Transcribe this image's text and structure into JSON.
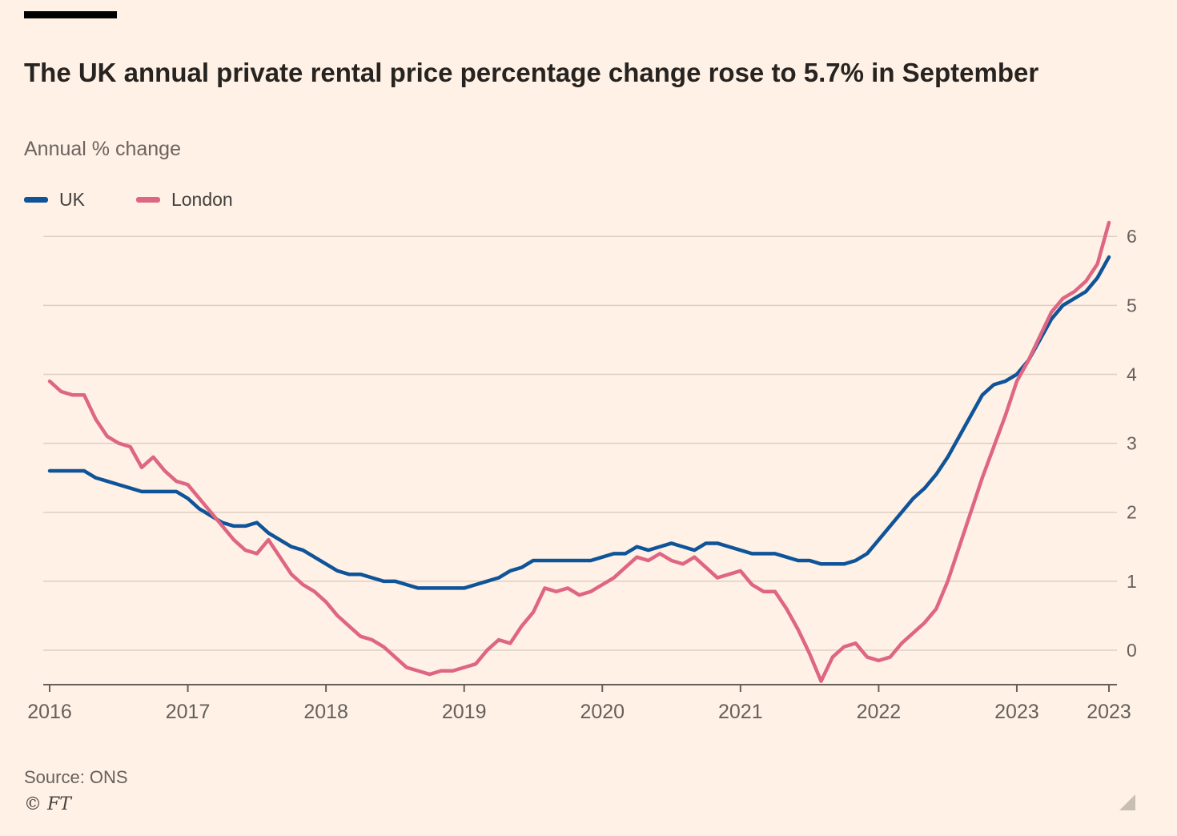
{
  "header": {
    "title": "The UK annual private rental price percentage change rose to 5.7% in September",
    "subtitle": "Annual % change"
  },
  "footer": {
    "source": "Source: ONS",
    "ft": "© FT"
  },
  "colors": {
    "background": "#FFF1E5",
    "title": "#262320",
    "subtitle": "#6b6460",
    "grid": "#ddd0c2",
    "axis": "#66605C",
    "tick_label": "#66605C",
    "uk_line": "#0F5499",
    "london_line": "#DE6683"
  },
  "chart_data": {
    "type": "line",
    "title": "The UK annual private rental price percentage change rose to 5.7% in September",
    "ylabel": "Annual % change",
    "xlabel": "",
    "grid": true,
    "legend_position": "top-left",
    "x_unit": "month",
    "x_range": [
      "2016-01",
      "2023-09"
    ],
    "ylim": [
      -0.5,
      6.2
    ],
    "y_ticks": [
      0,
      1,
      2,
      3,
      4,
      5,
      6
    ],
    "x_ticks": [
      {
        "label": "2016",
        "m": 0
      },
      {
        "label": "2017",
        "m": 12
      },
      {
        "label": "2018",
        "m": 24
      },
      {
        "label": "2019",
        "m": 36
      },
      {
        "label": "2020",
        "m": 48
      },
      {
        "label": "2021",
        "m": 60
      },
      {
        "label": "2022",
        "m": 72
      },
      {
        "label": "2023",
        "m": 84
      },
      {
        "label": "2023",
        "m": 92
      }
    ],
    "series": [
      {
        "name": "UK",
        "color": "#0F5499",
        "values": [
          2.6,
          2.6,
          2.6,
          2.6,
          2.5,
          2.45,
          2.4,
          2.35,
          2.3,
          2.3,
          2.3,
          2.3,
          2.2,
          2.05,
          1.95,
          1.85,
          1.8,
          1.8,
          1.85,
          1.7,
          1.6,
          1.5,
          1.45,
          1.35,
          1.25,
          1.15,
          1.1,
          1.1,
          1.05,
          1.0,
          1.0,
          0.95,
          0.9,
          0.9,
          0.9,
          0.9,
          0.9,
          0.95,
          1.0,
          1.05,
          1.15,
          1.2,
          1.3,
          1.3,
          1.3,
          1.3,
          1.3,
          1.3,
          1.35,
          1.4,
          1.4,
          1.5,
          1.45,
          1.5,
          1.55,
          1.5,
          1.45,
          1.55,
          1.55,
          1.5,
          1.45,
          1.4,
          1.4,
          1.4,
          1.35,
          1.3,
          1.3,
          1.25,
          1.25,
          1.25,
          1.3,
          1.4,
          1.6,
          1.8,
          2.0,
          2.2,
          2.35,
          2.55,
          2.8,
          3.1,
          3.4,
          3.7,
          3.85,
          3.9,
          4.0,
          4.2,
          4.5,
          4.8,
          5.0,
          5.1,
          5.2,
          5.4,
          5.7
        ]
      },
      {
        "name": "London",
        "color": "#DE6683",
        "values": [
          3.9,
          3.75,
          3.7,
          3.7,
          3.35,
          3.1,
          3.0,
          2.95,
          2.65,
          2.8,
          2.6,
          2.45,
          2.4,
          2.2,
          2.0,
          1.8,
          1.6,
          1.45,
          1.4,
          1.6,
          1.35,
          1.1,
          0.95,
          0.85,
          0.7,
          0.5,
          0.35,
          0.2,
          0.15,
          0.05,
          -0.1,
          -0.25,
          -0.3,
          -0.35,
          -0.3,
          -0.3,
          -0.25,
          -0.2,
          0.0,
          0.15,
          0.1,
          0.35,
          0.55,
          0.9,
          0.85,
          0.9,
          0.8,
          0.85,
          0.95,
          1.05,
          1.2,
          1.35,
          1.3,
          1.4,
          1.3,
          1.25,
          1.35,
          1.2,
          1.05,
          1.1,
          1.15,
          0.95,
          0.85,
          0.85,
          0.6,
          0.3,
          -0.05,
          -0.45,
          -0.1,
          0.05,
          0.1,
          -0.1,
          -0.15,
          -0.1,
          0.1,
          0.25,
          0.4,
          0.6,
          1.0,
          1.5,
          2.0,
          2.5,
          2.95,
          3.4,
          3.9,
          4.2,
          4.55,
          4.9,
          5.1,
          5.2,
          5.35,
          5.6,
          6.2
        ]
      }
    ]
  }
}
